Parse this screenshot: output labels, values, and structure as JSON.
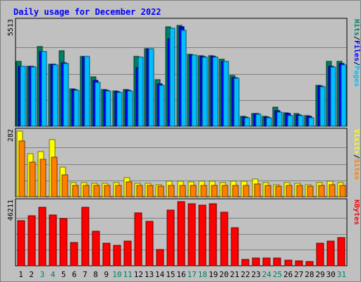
{
  "chart_data": {
    "type": "bar",
    "title": "Daily usage for December 2022",
    "categories": [
      "1",
      "2",
      "3",
      "4",
      "5",
      "6",
      "7",
      "8",
      "9",
      "10",
      "11",
      "12",
      "13",
      "14",
      "15",
      "16",
      "17",
      "18",
      "19",
      "20",
      "21",
      "22",
      "23",
      "24",
      "25",
      "26",
      "27",
      "28",
      "29",
      "30",
      "31"
    ],
    "weekend_days": [
      "3",
      "4",
      "10",
      "11",
      "17",
      "18",
      "24",
      "25",
      "31"
    ],
    "panels": [
      {
        "id": "top",
        "ymax_label": "5513",
        "ymax": 5513,
        "legend": [
          "Pages",
          "/",
          "Files",
          "/",
          "Hits"
        ],
        "series": [
          {
            "name": "Hits",
            "color": "#00805c",
            "values": [
              3390,
              3140,
              4190,
              3250,
              3970,
              1960,
              3680,
              2590,
              1940,
              1840,
              1930,
              3680,
              4070,
              2430,
              5230,
              5290,
              3770,
              3700,
              3700,
              3500,
              2650,
              520,
              680,
              530,
              1000,
              700,
              670,
              540,
              2150,
              3390,
              3390
            ]
          },
          {
            "name": "Files",
            "color": "#0000ff",
            "values": [
              3140,
              3140,
              3920,
              3240,
              3320,
              1910,
              3680,
              2400,
              1870,
              1820,
              1870,
              3060,
              4070,
              2210,
              4590,
              5220,
              3740,
              3660,
              3660,
              3420,
              2570,
              490,
              660,
              490,
              830,
              650,
              610,
              500,
              2100,
              3140,
              3310
            ]
          },
          {
            "name": "Pages",
            "color": "#00bfff",
            "values": [
              3140,
              3090,
              3920,
              3220,
              3300,
              1880,
              3680,
              2300,
              1840,
              1780,
              1850,
              3620,
              4060,
              2160,
              5160,
              5040,
              3720,
              3630,
              3640,
              3390,
              2520,
              440,
              630,
              460,
              730,
              550,
              550,
              460,
              2070,
              3120,
              3230
            ]
          }
        ]
      },
      {
        "id": "middle",
        "ymax_label": "282",
        "ymax": 282,
        "legend": [
          "Sites",
          "/",
          "Visits"
        ],
        "series": [
          {
            "name": "Visits",
            "color": "#ffff00",
            "values": [
              282,
              186,
              195,
              246,
              128,
              60,
              62,
              58,
              58,
              62,
              83,
              58,
              58,
              53,
              68,
              68,
              65,
              68,
              68,
              62,
              68,
              68,
              75,
              62,
              53,
              60,
              58,
              53,
              62,
              68,
              62
            ]
          },
          {
            "name": "Sites",
            "color": "#ff8000",
            "values": [
              240,
              150,
              160,
              170,
              93,
              48,
              48,
              48,
              50,
              50,
              65,
              48,
              48,
              45,
              50,
              50,
              50,
              50,
              50,
              48,
              50,
              50,
              55,
              48,
              45,
              48,
              48,
              45,
              50,
              53,
              50
            ]
          }
        ]
      },
      {
        "id": "bottom",
        "ymax_label": "46211",
        "ymax": 46211,
        "legend": [
          "KBytes"
        ],
        "series": [
          {
            "name": "KBytes",
            "color": "#ff0000",
            "values": [
              32400,
              36000,
              42300,
              36700,
              33800,
              17000,
              42300,
              24800,
              16300,
              14800,
              17600,
              38000,
              32200,
              11600,
              40300,
              46000,
              44700,
              43800,
              44700,
              38700,
              27400,
              4500,
              5400,
              5500,
              5400,
              4200,
              3800,
              3100,
              16300,
              17900,
              20300
            ]
          }
        ]
      }
    ]
  }
}
